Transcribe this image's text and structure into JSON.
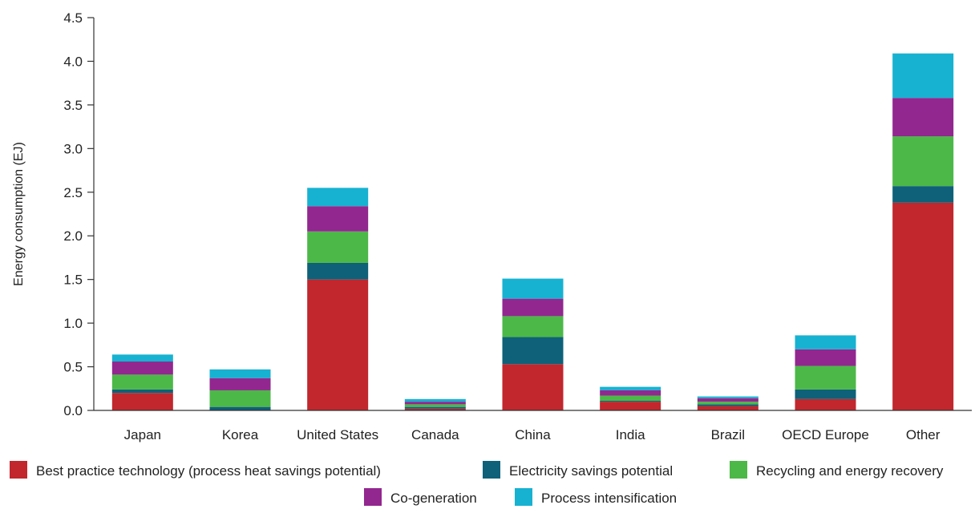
{
  "chart_data": {
    "type": "bar",
    "stacked": true,
    "ylabel": "Energy consumption (EJ)",
    "xlabel": "",
    "ylim": [
      0,
      4.5
    ],
    "yticks": [
      "0.0",
      "0.5",
      "1.0",
      "1.5",
      "2.0",
      "2.5",
      "3.0",
      "3.5",
      "4.0",
      "4.5"
    ],
    "grid": false,
    "legend_position": "bottom",
    "categories": [
      "Japan",
      "Korea",
      "United States",
      "Canada",
      "China",
      "India",
      "Brazil",
      "OECD Europe",
      "Other"
    ],
    "series": [
      {
        "name": "Best practice technology (process heat savings potential)",
        "color": "#c1272d",
        "values": [
          0.2,
          0.0,
          1.5,
          0.02,
          0.53,
          0.1,
          0.05,
          0.13,
          2.38
        ]
      },
      {
        "name": "Electricity savings potential",
        "color": "#0e6178",
        "values": [
          0.04,
          0.04,
          0.19,
          0.02,
          0.31,
          0.01,
          0.02,
          0.11,
          0.19
        ]
      },
      {
        "name": "Recycling and energy recovery",
        "color": "#4cb848",
        "values": [
          0.17,
          0.19,
          0.36,
          0.03,
          0.24,
          0.06,
          0.03,
          0.27,
          0.57
        ]
      },
      {
        "name": "Co-generation",
        "color": "#92278f",
        "values": [
          0.15,
          0.14,
          0.29,
          0.03,
          0.2,
          0.06,
          0.04,
          0.19,
          0.44
        ]
      },
      {
        "name": "Process intensification",
        "color": "#17b2d1",
        "values": [
          0.08,
          0.1,
          0.21,
          0.03,
          0.23,
          0.04,
          0.02,
          0.16,
          0.51
        ]
      }
    ]
  }
}
